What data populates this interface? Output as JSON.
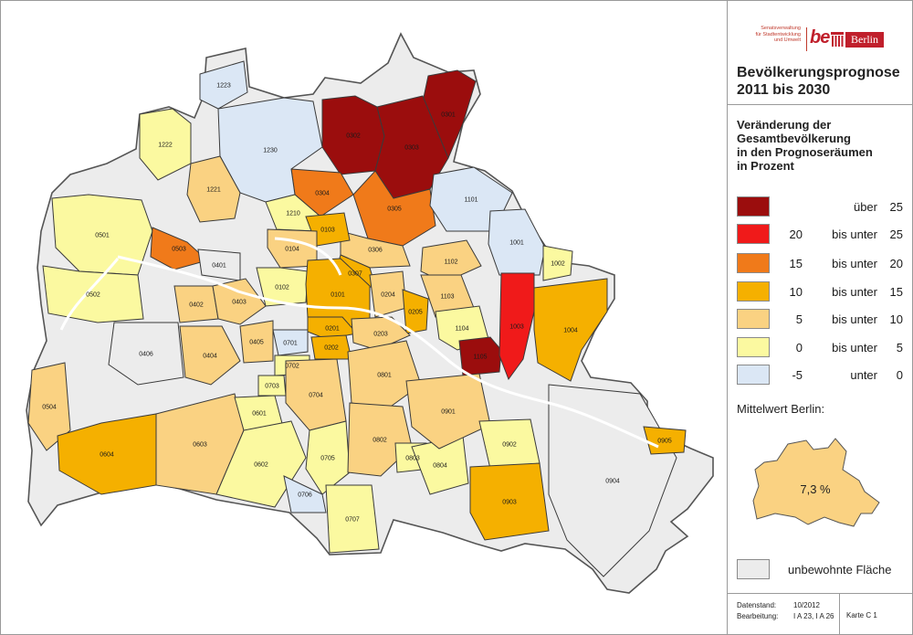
{
  "header": {
    "logo_lines": [
      "Senatsverwaltung",
      "für Stadtentwicklung",
      "und Umwelt"
    ],
    "logo_be": "be",
    "logo_berlin": "Berlin",
    "title_line1": "Bevölkerungsprognose",
    "title_line2": "2011 bis 2030"
  },
  "legend": {
    "title_lines": [
      "Veränderung der",
      "Gesamtbevölkerung",
      "in den Prognoseräumen",
      "in Prozent"
    ],
    "classes": [
      {
        "from": "",
        "relation": "über",
        "to": "25",
        "color": "#9b0d0d"
      },
      {
        "from": "20",
        "relation": "bis unter",
        "to": "25",
        "color": "#f01a1a"
      },
      {
        "from": "15",
        "relation": "bis unter",
        "to": "20",
        "color": "#f07a1a"
      },
      {
        "from": "10",
        "relation": "bis unter",
        "to": "15",
        "color": "#f5b000"
      },
      {
        "from": "5",
        "relation": "bis unter",
        "to": "10",
        "color": "#fad282"
      },
      {
        "from": "0",
        "relation": "bis unter",
        "to": "5",
        "color": "#fbf9a0"
      },
      {
        "from": "-5",
        "relation": "unter",
        "to": "0",
        "color": "#dbe7f5"
      }
    ],
    "mean_label": "Mittelwert Berlin:",
    "mean_value": "7,3 %",
    "uninhabited_label": "unbewohnte Fläche",
    "uninhabited_color": "#ececec"
  },
  "footer": {
    "stand_label": "Datenstand:",
    "stand_value": "10/2012",
    "bearbeitung_label": "Bearbeitung:",
    "bearbeitung_value": "I A 23, I A 26",
    "karte": "Karte  C 1"
  },
  "map": {
    "areas": [
      {
        "code": "0101",
        "cls": 3
      },
      {
        "code": "0102",
        "cls": 5
      },
      {
        "code": "0103",
        "cls": 3
      },
      {
        "code": "0104",
        "cls": 4
      },
      {
        "code": "0201",
        "cls": 3
      },
      {
        "code": "0202",
        "cls": 3
      },
      {
        "code": "0203",
        "cls": 4
      },
      {
        "code": "0204",
        "cls": 4
      },
      {
        "code": "0205",
        "cls": 3
      },
      {
        "code": "0301",
        "cls": 0
      },
      {
        "code": "0302",
        "cls": 0
      },
      {
        "code": "0303",
        "cls": 0
      },
      {
        "code": "0304",
        "cls": 2
      },
      {
        "code": "0305",
        "cls": 2
      },
      {
        "code": "0306",
        "cls": 4
      },
      {
        "code": "0307",
        "cls": 3
      },
      {
        "code": "0401",
        "cls": 7
      },
      {
        "code": "0402",
        "cls": 4
      },
      {
        "code": "0403",
        "cls": 4
      },
      {
        "code": "0404",
        "cls": 4
      },
      {
        "code": "0405",
        "cls": 4
      },
      {
        "code": "0406",
        "cls": 7
      },
      {
        "code": "0501",
        "cls": 5
      },
      {
        "code": "0502",
        "cls": 5
      },
      {
        "code": "0503",
        "cls": 2
      },
      {
        "code": "0504",
        "cls": 4
      },
      {
        "code": "0601",
        "cls": 5
      },
      {
        "code": "0602",
        "cls": 5
      },
      {
        "code": "0603",
        "cls": 4
      },
      {
        "code": "0604",
        "cls": 3
      },
      {
        "code": "0701",
        "cls": 6
      },
      {
        "code": "0702",
        "cls": 5
      },
      {
        "code": "0703",
        "cls": 5
      },
      {
        "code": "0704",
        "cls": 4
      },
      {
        "code": "0705",
        "cls": 5
      },
      {
        "code": "0706",
        "cls": 6
      },
      {
        "code": "0707",
        "cls": 5
      },
      {
        "code": "0801",
        "cls": 4
      },
      {
        "code": "0802",
        "cls": 4
      },
      {
        "code": "0803",
        "cls": 5
      },
      {
        "code": "0804",
        "cls": 5
      },
      {
        "code": "0901",
        "cls": 4
      },
      {
        "code": "0902",
        "cls": 5
      },
      {
        "code": "0903",
        "cls": 3
      },
      {
        "code": "0904",
        "cls": 7
      },
      {
        "code": "0905",
        "cls": 3
      },
      {
        "code": "1001",
        "cls": 6
      },
      {
        "code": "1002",
        "cls": 5
      },
      {
        "code": "1003",
        "cls": 1
      },
      {
        "code": "1004",
        "cls": 3
      },
      {
        "code": "1101",
        "cls": 6
      },
      {
        "code": "1102",
        "cls": 4
      },
      {
        "code": "1103",
        "cls": 4
      },
      {
        "code": "1104",
        "cls": 5
      },
      {
        "code": "1105",
        "cls": 0
      },
      {
        "code": "1210",
        "cls": 5
      },
      {
        "code": "1221",
        "cls": 4
      },
      {
        "code": "1222",
        "cls": 5
      },
      {
        "code": "1223",
        "cls": 6
      },
      {
        "code": "1230",
        "cls": 6
      }
    ]
  }
}
